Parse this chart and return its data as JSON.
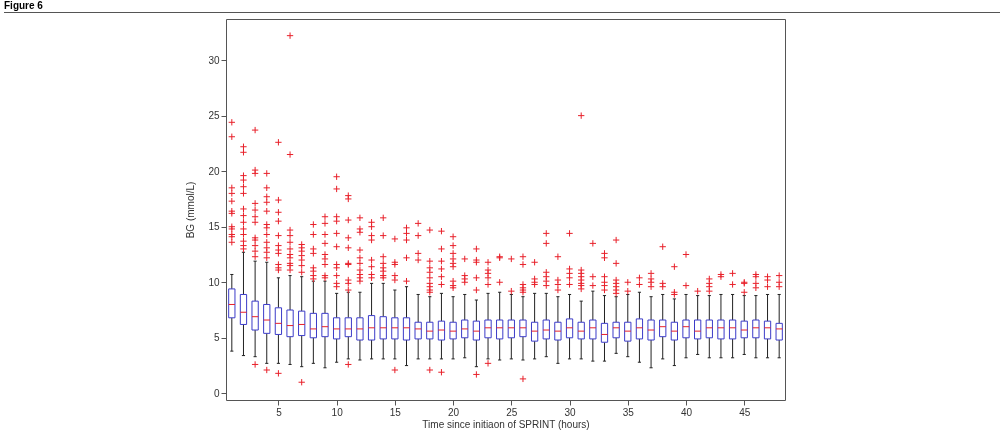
{
  "chart_data": {
    "type": "box",
    "title": "Figure 6",
    "xlabel": "Time since initiaon of SPRINT (hours)",
    "ylabel": "BG (mmol/L)",
    "categories": [
      null,
      null,
      null,
      null,
      "5",
      null,
      null,
      null,
      null,
      "10",
      null,
      null,
      null,
      null,
      "15",
      null,
      null,
      null,
      null,
      "20",
      null,
      null,
      null,
      null,
      "25",
      null,
      null,
      null,
      null,
      "30",
      null,
      null,
      null,
      null,
      "35",
      null,
      null,
      null,
      null,
      "40",
      null,
      null,
      null,
      null,
      "45",
      null,
      null,
      null
    ],
    "color": "#3b3bc8",
    "marker": "cross",
    "grid": false,
    "ylim": [
      -0.6,
      33.7
    ],
    "yticks": [
      0,
      5,
      10,
      15,
      20,
      25,
      30
    ],
    "boxes": [
      {
        "low": 3.8,
        "q1": 6.8,
        "median": 8.0,
        "q3": 9.4,
        "high": 10.7,
        "outliers": [
          24.4,
          23.1,
          18.5,
          18.0,
          17.3,
          16.4,
          16.2,
          15.0,
          14.8,
          14.3,
          14.1,
          13.6
        ]
      },
      {
        "low": 3.4,
        "q1": 6.2,
        "median": 7.3,
        "q3": 8.9,
        "high": 12.7,
        "outliers": [
          22.2,
          21.7,
          19.6,
          19.2,
          18.6,
          18.0,
          16.6,
          16.0,
          15.4,
          14.8,
          14.3,
          13.7,
          13.3,
          13.0
        ]
      },
      {
        "low": 3.3,
        "q1": 5.7,
        "median": 6.9,
        "q3": 8.3,
        "high": 11.9,
        "outliers": [
          23.7,
          20.1,
          19.8,
          17.1,
          16.5,
          15.9,
          15.4,
          14.0,
          13.8,
          13.3,
          12.8,
          12.3,
          2.6
        ]
      },
      {
        "low": 2.7,
        "q1": 5.4,
        "median": 6.6,
        "q3": 8.0,
        "high": 11.8,
        "outliers": [
          19.8,
          18.5,
          17.7,
          17.2,
          16.4,
          15.2,
          14.9,
          14.3,
          13.6,
          13.1,
          12.7,
          12.2,
          2.1
        ]
      },
      {
        "low": 2.7,
        "q1": 5.3,
        "median": 6.3,
        "q3": 7.7,
        "high": 10.4,
        "outliers": [
          22.6,
          17.4,
          16.3,
          15.5,
          14.2,
          13.3,
          12.9,
          12.6,
          11.6,
          11.3,
          11.1,
          1.8
        ]
      },
      {
        "low": 2.6,
        "q1": 5.1,
        "median": 6.1,
        "q3": 7.5,
        "high": 10.6,
        "outliers": [
          32.2,
          21.5,
          14.7,
          14.2,
          13.6,
          13.0,
          12.5,
          12.2,
          11.7,
          11.5,
          11.1
        ]
      },
      {
        "low": 2.4,
        "q1": 5.2,
        "median": 6.2,
        "q3": 7.4,
        "high": 10.5,
        "outliers": [
          13.4,
          13.1,
          12.8,
          12.4,
          12.0,
          11.5,
          10.9,
          1.0
        ]
      },
      {
        "low": 2.7,
        "q1": 5.0,
        "median": 5.8,
        "q3": 7.2,
        "high": 10.1,
        "outliers": [
          15.2,
          14.3,
          13.0,
          12.6,
          11.3,
          11.0,
          10.6,
          10.3
        ]
      },
      {
        "low": 2.3,
        "q1": 5.1,
        "median": 6.0,
        "q3": 7.2,
        "high": 10.1,
        "outliers": [
          15.9,
          15.3,
          14.3,
          13.5,
          12.5,
          12.1,
          11.6,
          10.6,
          10.4
        ]
      },
      {
        "low": 2.8,
        "q1": 4.9,
        "median": 5.8,
        "q3": 6.8,
        "high": 9.0,
        "outliers": [
          19.5,
          18.4,
          15.9,
          15.5,
          14.4,
          13.2,
          11.6,
          11.3,
          10.6,
          9.9,
          9.6
        ]
      },
      {
        "low": 3.1,
        "q1": 5.1,
        "median": 5.8,
        "q3": 6.8,
        "high": 9.1,
        "outliers": [
          17.8,
          17.5,
          15.6,
          14.0,
          13.1,
          11.7,
          11.6,
          10.2,
          9.9,
          9.3,
          2.6
        ]
      },
      {
        "low": 3.0,
        "q1": 4.8,
        "median": 5.8,
        "q3": 6.8,
        "high": 9.1,
        "outliers": [
          15.8,
          14.8,
          14.5,
          12.9,
          12.2,
          11.7,
          11.1,
          10.7,
          10.4,
          10.1
        ]
      },
      {
        "low": 3.1,
        "q1": 4.8,
        "median": 5.9,
        "q3": 7.0,
        "high": 9.9,
        "outliers": [
          15.4,
          15.0,
          14.2,
          13.8,
          12.0,
          11.4,
          10.7,
          10.4
        ]
      },
      {
        "low": 3.1,
        "q1": 4.9,
        "median": 5.9,
        "q3": 6.9,
        "high": 9.9,
        "outliers": [
          15.8,
          14.2,
          12.3,
          11.7,
          11.3,
          11.0,
          10.6,
          10.4
        ]
      },
      {
        "low": 3.1,
        "q1": 4.9,
        "median": 5.9,
        "q3": 6.8,
        "high": 9.3,
        "outliers": [
          13.9,
          11.8,
          11.6,
          10.6,
          10.2,
          2.1
        ]
      },
      {
        "low": 2.5,
        "q1": 4.8,
        "median": 5.9,
        "q3": 6.8,
        "high": 9.6,
        "outliers": [
          14.9,
          14.4,
          13.8,
          12.2,
          10.1
        ]
      },
      {
        "low": 3.1,
        "q1": 4.9,
        "median": 5.8,
        "q3": 6.4,
        "high": 8.9,
        "outliers": [
          15.3,
          14.2,
          12.6,
          12.0
        ]
      },
      {
        "low": 3.1,
        "q1": 4.9,
        "median": 5.6,
        "q3": 6.4,
        "high": 8.7,
        "outliers": [
          14.7,
          11.9,
          11.3,
          10.9,
          10.4,
          9.9,
          9.6,
          9.3,
          9.1,
          2.1
        ]
      },
      {
        "low": 3.1,
        "q1": 4.8,
        "median": 5.7,
        "q3": 6.5,
        "high": 9.0,
        "outliers": [
          14.6,
          13.0,
          11.9,
          11.2,
          10.5,
          9.8,
          1.9
        ]
      },
      {
        "low": 3.1,
        "q1": 4.9,
        "median": 5.6,
        "q3": 6.4,
        "high": 8.7,
        "outliers": [
          14.1,
          13.3,
          12.6,
          12.1,
          11.7,
          11.4,
          10.1,
          9.7,
          9.5
        ]
      },
      {
        "low": 3.2,
        "q1": 5.0,
        "median": 5.8,
        "q3": 6.6,
        "high": 8.9,
        "outliers": [
          12.1,
          10.6,
          10.3,
          10.0
        ]
      },
      {
        "low": 2.4,
        "q1": 4.8,
        "median": 5.6,
        "q3": 6.5,
        "high": 8.4,
        "outliers": [
          13.0,
          12.0,
          11.8,
          10.4,
          9.3,
          1.7
        ]
      },
      {
        "low": 3.1,
        "q1": 5.0,
        "median": 5.9,
        "q3": 6.6,
        "high": 9.0,
        "outliers": [
          11.8,
          11.1,
          10.8,
          10.4,
          9.8,
          2.7
        ]
      },
      {
        "low": 3.0,
        "q1": 4.9,
        "median": 5.9,
        "q3": 6.6,
        "high": 9.1,
        "outliers": [
          12.3,
          12.2,
          10.0
        ]
      },
      {
        "low": 3.1,
        "q1": 5.0,
        "median": 5.9,
        "q3": 6.6,
        "high": 8.9,
        "outliers": [
          12.1,
          9.2
        ]
      },
      {
        "low": 3.0,
        "q1": 5.1,
        "median": 5.9,
        "q3": 6.6,
        "high": 8.7,
        "outliers": [
          12.3,
          11.6,
          9.8,
          9.5,
          9.3,
          9.1,
          1.3
        ]
      },
      {
        "low": 3.1,
        "q1": 4.7,
        "median": 5.6,
        "q3": 6.4,
        "high": 9.0,
        "outliers": [
          11.8,
          10.3,
          10.0,
          9.8
        ]
      },
      {
        "low": 3.3,
        "q1": 4.9,
        "median": 5.7,
        "q3": 6.6,
        "high": 9.0,
        "outliers": [
          14.4,
          13.5,
          10.9,
          10.5,
          10.1,
          9.7
        ]
      },
      {
        "low": 2.7,
        "q1": 4.8,
        "median": 5.6,
        "q3": 6.4,
        "high": 8.7,
        "outliers": [
          12.3,
          10.2,
          9.8,
          9.3
        ]
      },
      {
        "low": 3.1,
        "q1": 5.0,
        "median": 5.9,
        "q3": 6.7,
        "high": 8.9,
        "outliers": [
          14.4,
          11.2,
          10.8,
          10.4,
          9.8
        ]
      },
      {
        "low": 3.1,
        "q1": 4.9,
        "median": 5.6,
        "q3": 6.4,
        "high": 8.3,
        "outliers": [
          25.0,
          11.1,
          10.8,
          10.5,
          10.2,
          9.9,
          9.7,
          9.4
        ]
      },
      {
        "low": 2.9,
        "q1": 4.9,
        "median": 5.9,
        "q3": 6.6,
        "high": 9.2,
        "outliers": [
          13.5,
          10.5,
          9.7
        ]
      },
      {
        "low": 2.9,
        "q1": 4.6,
        "median": 5.3,
        "q3": 6.3,
        "high": 8.8,
        "outliers": [
          12.6,
          12.2,
          10.5,
          10.0,
          9.7,
          9.3
        ]
      },
      {
        "low": 3.6,
        "q1": 5.0,
        "median": 5.9,
        "q3": 6.4,
        "high": 8.7,
        "outliers": [
          13.8,
          11.7,
          10.2,
          9.9,
          9.6,
          9.3,
          9.0
        ]
      },
      {
        "low": 3.3,
        "q1": 4.7,
        "median": 5.6,
        "q3": 6.4,
        "high": 8.9,
        "outliers": [
          10.0,
          9.2
        ]
      },
      {
        "low": 2.8,
        "q1": 4.9,
        "median": 5.9,
        "q3": 6.7,
        "high": 9.1,
        "outliers": [
          10.4,
          9.8
        ]
      },
      {
        "low": 2.3,
        "q1": 4.8,
        "median": 5.7,
        "q3": 6.6,
        "high": 8.7,
        "outliers": [
          10.8,
          10.3,
          10.0,
          9.6
        ]
      },
      {
        "low": 3.1,
        "q1": 5.1,
        "median": 6.0,
        "q3": 6.6,
        "high": 8.9,
        "outliers": [
          13.2,
          9.9,
          9.6
        ]
      },
      {
        "low": 2.5,
        "q1": 4.8,
        "median": 5.6,
        "q3": 6.4,
        "high": 8.5,
        "outliers": [
          11.4,
          9.1,
          8.9
        ]
      },
      {
        "low": 3.2,
        "q1": 5.0,
        "median": 6.0,
        "q3": 6.6,
        "high": 8.9,
        "outliers": [
          12.5,
          9.7
        ]
      },
      {
        "low": 3.5,
        "q1": 4.9,
        "median": 5.6,
        "q3": 6.6,
        "high": 8.8,
        "outliers": [
          9.2
        ]
      },
      {
        "low": 3.2,
        "q1": 5.0,
        "median": 5.9,
        "q3": 6.6,
        "high": 8.8,
        "outliers": [
          10.3,
          9.9,
          9.6,
          9.2
        ]
      },
      {
        "low": 3.2,
        "q1": 4.9,
        "median": 5.9,
        "q3": 6.6,
        "high": 8.9,
        "outliers": [
          10.7,
          10.5
        ]
      },
      {
        "low": 3.2,
        "q1": 4.9,
        "median": 5.9,
        "q3": 6.6,
        "high": 8.9,
        "outliers": [
          10.8,
          9.8
        ]
      },
      {
        "low": 3.5,
        "q1": 5.0,
        "median": 5.7,
        "q3": 6.5,
        "high": 8.8,
        "outliers": [
          10.0,
          9.9,
          9.1
        ]
      },
      {
        "low": 3.2,
        "q1": 5.0,
        "median": 5.9,
        "q3": 6.6,
        "high": 8.8,
        "outliers": [
          10.7,
          10.5,
          9.9,
          9.5
        ]
      },
      {
        "low": 3.2,
        "q1": 4.9,
        "median": 5.9,
        "q3": 6.5,
        "high": 8.9,
        "outliers": [
          10.5,
          10.2,
          9.6
        ]
      },
      {
        "low": 3.2,
        "q1": 4.8,
        "median": 5.8,
        "q3": 6.3,
        "high": 8.9,
        "outliers": [
          10.6,
          10.0,
          9.6
        ]
      }
    ]
  }
}
